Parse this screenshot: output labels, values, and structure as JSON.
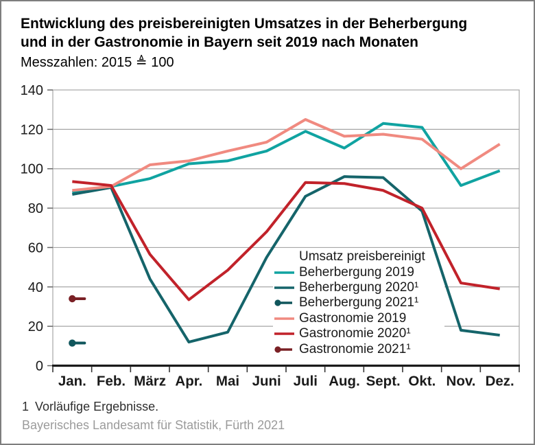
{
  "header": {
    "title_line1": "Entwicklung des preisbereinigten Umsatzes in der Beherbergung",
    "title_line2": "und in der Gastronomie in Bayern seit 2019 nach Monaten",
    "subtitle": "Messzahlen: 2015 ≜ 100"
  },
  "footer": {
    "footnote_number": "1",
    "footnote_text": "Vorläufige Ergebnisse.",
    "source": "Bayerisches Landesamt für Statistik, Fürth 2021"
  },
  "colors": {
    "grid": "#a6a6a6",
    "axis": "#1a1a1a",
    "y_tick": "#666666",
    "x_tick": "#333333",
    "tick_label": "#1a1a1a"
  },
  "chart_data": {
    "type": "line",
    "title": "Entwicklung des preisbereinigten Umsatzes in der Beherbergung und in der Gastronomie in Bayern seit 2019 nach Monaten",
    "subtitle": "Messzahlen: 2015 ≜ 100",
    "xlabel": "",
    "ylabel": "",
    "ylim": [
      0,
      140
    ],
    "yticks": [
      0,
      20,
      40,
      60,
      80,
      100,
      120,
      140
    ],
    "grid": "horizontal",
    "legend_title": "Umsatz preisbereinigt",
    "legend_position": "inside lower right",
    "categories": [
      "Jan.",
      "Feb.",
      "März",
      "Apr.",
      "Mai",
      "Juni",
      "Juli",
      "Aug.",
      "Sept.",
      "Okt.",
      "Nov.",
      "Dez."
    ],
    "series": [
      {
        "name": "Beherbergung 2019",
        "color": "#10a3a1",
        "marker": "line",
        "values": [
          88,
          91,
          95,
          102.5,
          104,
          109,
          119,
          110.5,
          123,
          121,
          91.5,
          99
        ]
      },
      {
        "name": "Beherbergung 2020¹",
        "color": "#15646a",
        "marker": "line",
        "values": [
          87,
          90.5,
          44,
          12,
          17,
          55,
          86,
          96,
          95.5,
          78.5,
          18,
          15.5
        ]
      },
      {
        "name": "Beherbergung 2021¹",
        "color": "#10565c",
        "marker": "dot-line",
        "values": [
          11.5,
          null,
          null,
          null,
          null,
          null,
          null,
          null,
          null,
          null,
          null,
          null
        ]
      },
      {
        "name": "Gastronomie 2019",
        "color": "#f08a80",
        "marker": "line",
        "values": [
          89,
          91,
          102,
          104,
          109,
          113.5,
          125,
          116.5,
          117.5,
          115,
          100,
          112.5
        ]
      },
      {
        "name": "Gastronomie 2020¹",
        "color": "#c1222a",
        "marker": "line",
        "values": [
          93.5,
          91.5,
          56.5,
          33.5,
          48.5,
          68,
          93,
          92.5,
          89,
          80,
          42,
          39
        ]
      },
      {
        "name": "Gastronomie 2021¹",
        "color": "#7a2025",
        "marker": "dot-line",
        "values": [
          34,
          null,
          null,
          null,
          null,
          null,
          null,
          null,
          null,
          null,
          null,
          null
        ]
      }
    ]
  }
}
